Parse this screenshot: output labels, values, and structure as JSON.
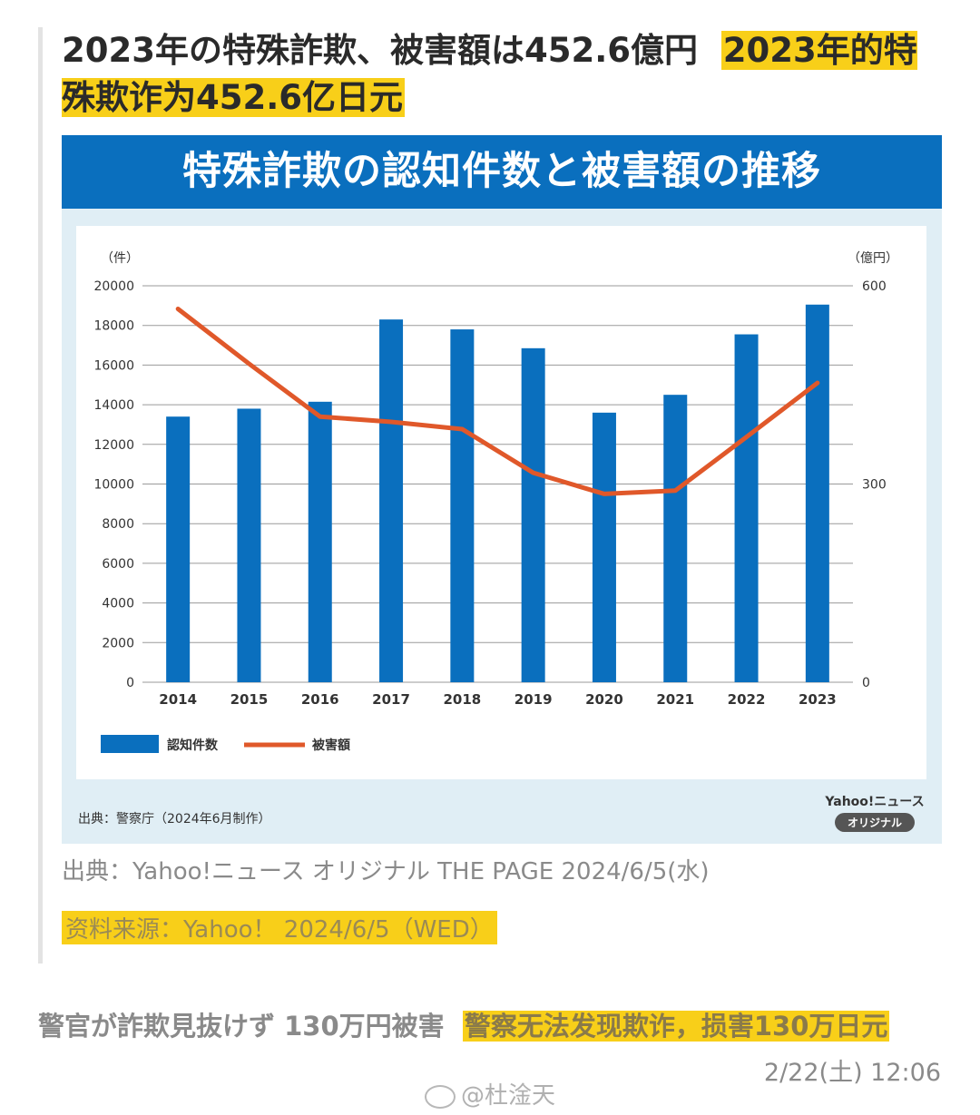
{
  "headline": {
    "ja": "2023年の特殊詐欺、被害額は452.6億円",
    "cn": "2023年的特殊欺诈为452.6亿日元"
  },
  "figure": {
    "title": "特殊詐欺の認知件数と被害額の推移",
    "source": "出典：警察庁（2024年6月制作）",
    "brand_name": "Yahoo!ニュース",
    "brand_tag": "オリジナル"
  },
  "caption": {
    "ja": "出典：Yahoo!ニュース オリジナル THE PAGE 2024/6/5(水)",
    "cn": "资料来源：Yahoo！ 2024/6/5（WED）"
  },
  "sub_headline": {
    "ja": "警官が詐欺見抜けず 130万円被害",
    "cn": "警察无法发现欺诈，损害130万日元"
  },
  "timestamp": "2/22(土) 12:06",
  "watermark": "@杜淦天",
  "colors": {
    "bar": "#0a6fbe",
    "line": "#e0582a",
    "highlight": "#f8cf19",
    "figure_bg": "#e0eef5"
  },
  "chart_data": {
    "type": "bar",
    "title": "特殊詐欺の認知件数と被害額の推移",
    "categories": [
      "2014",
      "2015",
      "2016",
      "2017",
      "2018",
      "2019",
      "2020",
      "2021",
      "2022",
      "2023"
    ],
    "y_unit_left": "（件）",
    "y_unit_right": "（億円）",
    "ylim_left": [
      0,
      20000
    ],
    "ylim_right": [
      0,
      600
    ],
    "yticks_left": [
      0,
      2000,
      4000,
      6000,
      8000,
      10000,
      12000,
      14000,
      16000,
      18000,
      20000
    ],
    "yticks_right": [
      0,
      300,
      600
    ],
    "grid": true,
    "legend_position": "bottom-left",
    "series": [
      {
        "name": "認知件数",
        "type": "bar",
        "axis": "left",
        "values": [
          13400,
          13800,
          14150,
          18300,
          17800,
          16850,
          13600,
          14500,
          17550,
          19050
        ]
      },
      {
        "name": "被害額",
        "type": "line",
        "axis": "right",
        "values": [
          565,
          482,
          402,
          394,
          383,
          317,
          285,
          290,
          371,
          453
        ]
      }
    ]
  }
}
